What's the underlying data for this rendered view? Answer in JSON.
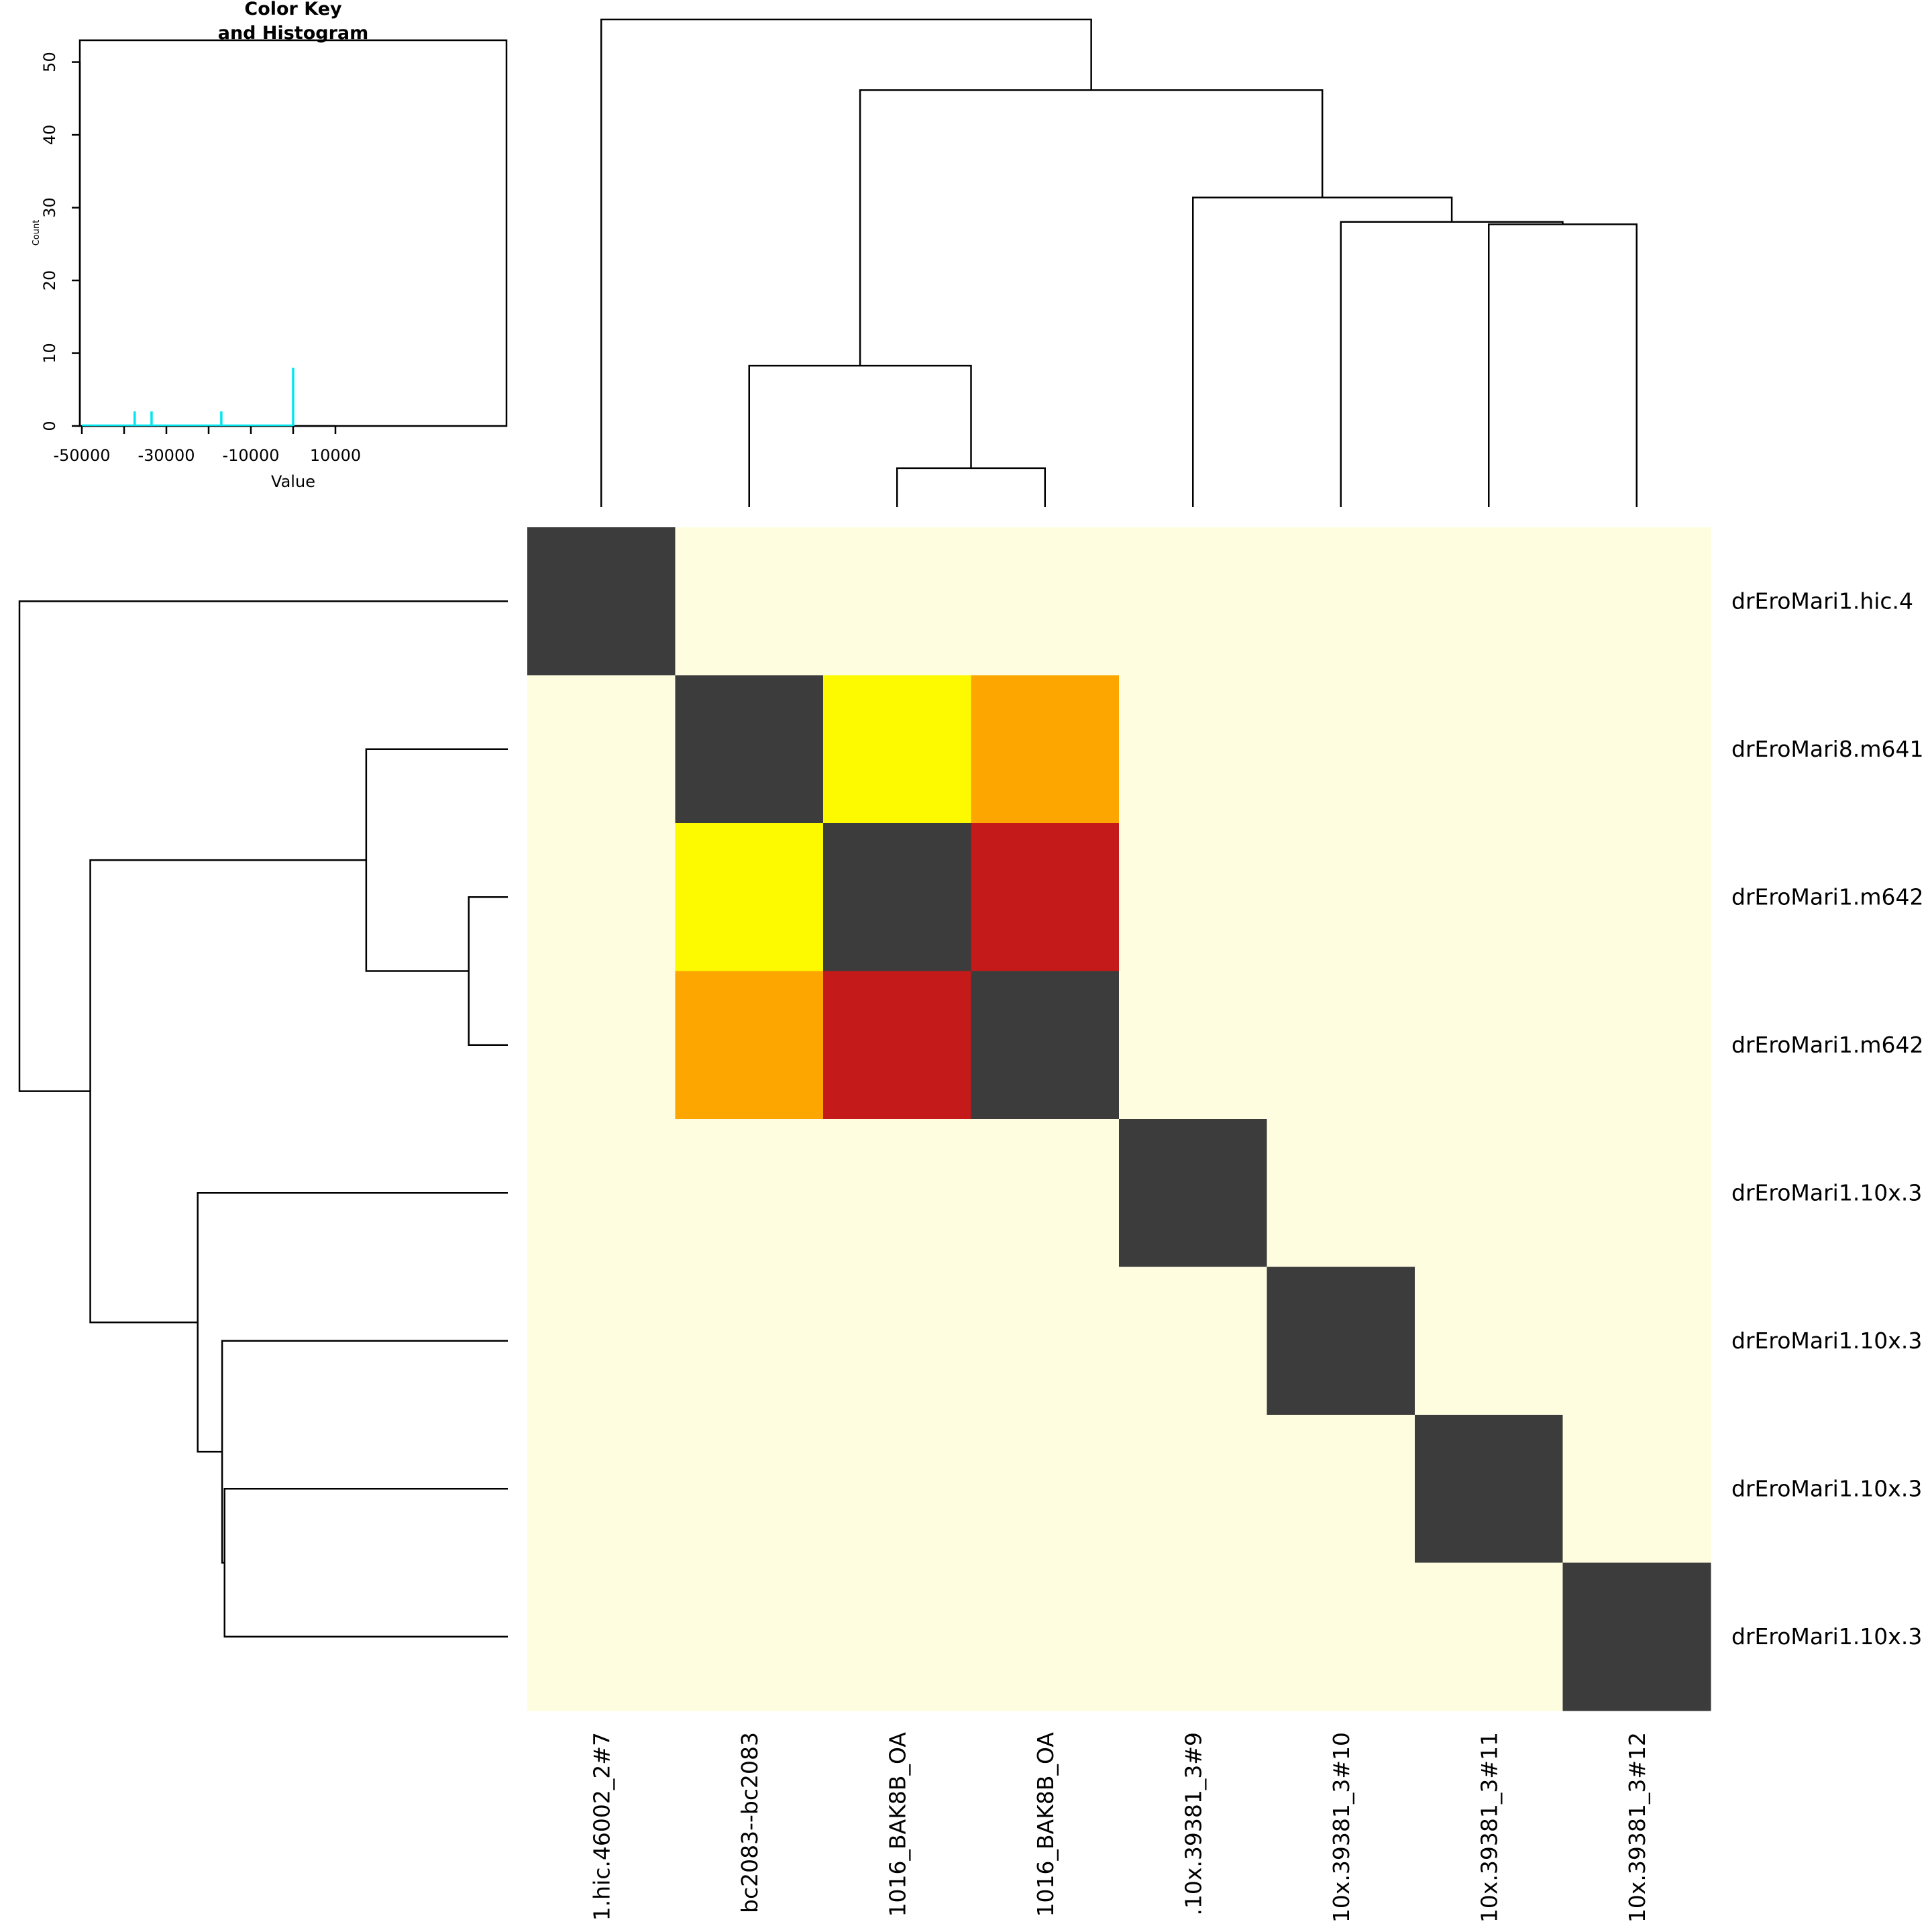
{
  "chart_data": [
    {
      "type": "heatmap",
      "row_labels": [
        "drEroMari1.hic.4",
        "drEroMari8.m641",
        "drEroMari1.m642",
        "drEroMari1.m642",
        "drEroMari1.10x.3",
        "drEroMari1.10x.3",
        "drEroMari1.10x.3",
        "drEroMari1.10x.3"
      ],
      "col_labels": [
        "1.hic.46002_2#7",
        "bc2083--bc2083",
        "1016_BAK8B_OA",
        "1016_BAK8B_OA",
        ".10x.39381_3#9",
        "10x.39381_3#10",
        "10x.39381_3#11",
        "10x.39381_3#12"
      ],
      "cell_colors": [
        [
          "#3c3c3c",
          "#fefde0",
          "#fefde0",
          "#fefde0",
          "#fefde0",
          "#fefde0",
          "#fefde0",
          "#fefde0"
        ],
        [
          "#fefde0",
          "#3c3c3c",
          "#fdfa00",
          "#fda600",
          "#fefde0",
          "#fefde0",
          "#fefde0",
          "#fefde0"
        ],
        [
          "#fefde0",
          "#fdfa00",
          "#3c3c3c",
          "#c41a1a",
          "#fefde0",
          "#fefde0",
          "#fefde0",
          "#fefde0"
        ],
        [
          "#fefde0",
          "#fda600",
          "#c41a1a",
          "#3c3c3c",
          "#fefde0",
          "#fefde0",
          "#fefde0",
          "#fefde0"
        ],
        [
          "#fefde0",
          "#fefde0",
          "#fefde0",
          "#fefde0",
          "#3c3c3c",
          "#fefde0",
          "#fefde0",
          "#fefde0"
        ],
        [
          "#fefde0",
          "#fefde0",
          "#fefde0",
          "#fefde0",
          "#fefde0",
          "#3c3c3c",
          "#fefde0",
          "#fefde0"
        ],
        [
          "#fefde0",
          "#fefde0",
          "#fefde0",
          "#fefde0",
          "#fefde0",
          "#fefde0",
          "#3c3c3c",
          "#fefde0"
        ],
        [
          "#fefde0",
          "#fefde0",
          "#fefde0",
          "#fefde0",
          "#fefde0",
          "#fefde0",
          "#fefde0",
          "#3c3c3c"
        ]
      ],
      "dendrogram_merges": [
        [
          3,
          4,
          0.08
        ],
        [
          2,
          3.5,
          0.29
        ],
        [
          7,
          8,
          0.58
        ],
        [
          6,
          7.5,
          0.585
        ],
        [
          5,
          6.75,
          0.635
        ],
        [
          2.75,
          5.875,
          0.855
        ],
        [
          1,
          4.3125,
          1.0
        ]
      ],
      "dendrogram_height_scale": 0.0163
    },
    {
      "type": "bar",
      "title": "Color Key\nand Histogram",
      "xlabel": "Value",
      "ylabel": "Count",
      "xlim": [
        -50000,
        50000
      ],
      "ylim": [
        0,
        53
      ],
      "x_ticks": [
        -50000,
        -40000,
        -30000,
        -20000,
        -10000,
        0,
        10000
      ],
      "x_tick_labels": [
        "-50000",
        "-30000",
        "-10000",
        "10000"
      ],
      "y_ticks": [
        0,
        10,
        20,
        30,
        40,
        50
      ],
      "bars": [
        {
          "x": -37500,
          "value": 2
        },
        {
          "x": -33500,
          "value": 2
        },
        {
          "x": -17000,
          "value": 2
        },
        {
          "x": 0,
          "value": 8
        }
      ],
      "histogram_color": "#00e5ee"
    }
  ]
}
